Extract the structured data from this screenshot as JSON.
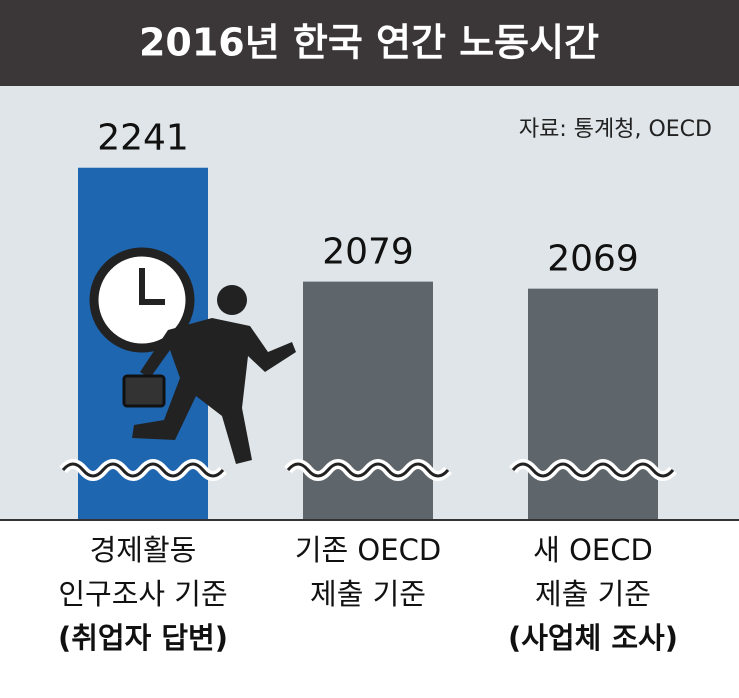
{
  "chart_data": {
    "type": "bar",
    "title": "2016년 한국 연간 노동시간",
    "source": "자료: 통계청, OECD",
    "categories": [
      [
        "경제활동",
        "인구조사 기준",
        "(취업자 답변)"
      ],
      [
        "기존 OECD",
        "제출 기준"
      ],
      [
        "새 OECD",
        "제출 기준",
        "(사업체 조사)"
      ]
    ],
    "values": [
      2241,
      2079,
      2069
    ],
    "colors": [
      "#1f66b0",
      "#5f666b",
      "#5f666b"
    ],
    "ylim": [
      1740,
      2380
    ]
  }
}
